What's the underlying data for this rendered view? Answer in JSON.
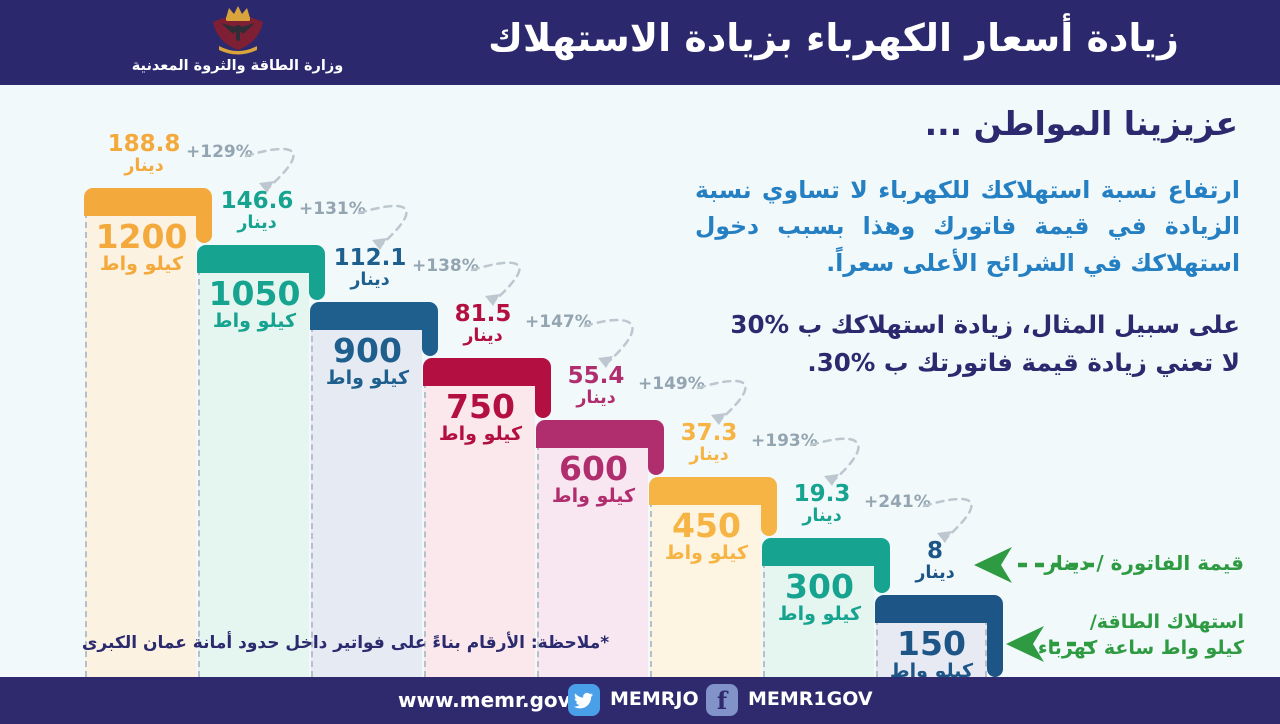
{
  "header": {
    "title": "زيادة أسعار الكهرباء بزيادة الاستهلاك",
    "ministry_name": "وزارة الطاقة والثروة المعدنية"
  },
  "intro": {
    "greeting": "عزيزينا المواطن ...",
    "paragraph1": "ارتفاع نسبة استهلاكك للكهرباء لا تساوي نسبة الزيادة في قيمة فاتورك وهذا بسبب دخول استهلاكك في الشرائح الأعلى سعراً.",
    "paragraph2": "على سبيل المثال، زيادة استهلاكك ب %30 لا تعني زيادة قيمة فاتورتك ب %30."
  },
  "legend": {
    "bill_label": "قيمة الفاتورة / دينار",
    "consumption_label_line1": "استهلاك الطاقة/",
    "consumption_label_line2": "كيلو واط ساعة كهرباء"
  },
  "note": "*ملاحظة: الأرقام بناءً على فواتير داخل حدود أمانة عمان الكبرى",
  "units": {
    "dinar": "دينار",
    "kilowatt": "كيلو واط"
  },
  "footer": {
    "website": "www.memr.gov.jo",
    "twitter_handle": "MEMRJO",
    "facebook_handle": "MEMR1GOV",
    "facebook_f": "f"
  },
  "colors": {
    "header_bg": "#2B286E",
    "footer_bg": "#2E2A6D",
    "background": "#F2F9FB",
    "arrow_green": "#2E9B43",
    "pct_grey": "#94A5B2",
    "arc_grey": "#BCC7CF"
  },
  "chart_data": {
    "type": "bar",
    "title": "زيادة أسعار الكهرباء بزيادة الاستهلاك",
    "x_unit": "كيلو واط",
    "y_unit": "دينار",
    "note": "الأرقام بناءً على فواتير داخل حدود أمانة عمان الكبرى",
    "categories_kwh": [
      1200,
      1050,
      900,
      750,
      600,
      450,
      300,
      150
    ],
    "values_price_jd": [
      188.8,
      146.6,
      112.1,
      81.5,
      55.4,
      37.3,
      19.3,
      8
    ],
    "increase_pct_labels": [
      "+129%",
      "+131%",
      "+138%",
      "+147%",
      "+149%",
      "+193%",
      "+241%",
      null
    ],
    "bars": [
      {
        "kwh": 1200,
        "price_jd": 188.8,
        "increase_pct": "+129%",
        "color": "#F4A93C",
        "tint": "#FCF2E1"
      },
      {
        "kwh": 1050,
        "price_jd": 146.6,
        "increase_pct": "+131%",
        "color": "#16A390",
        "tint": "#E5F5F0"
      },
      {
        "kwh": 900,
        "price_jd": 112.1,
        "increase_pct": "+138%",
        "color": "#1E5F8E",
        "tint": "#E6EAF3"
      },
      {
        "kwh": 750,
        "price_jd": 81.5,
        "increase_pct": "+147%",
        "color": "#B31041",
        "tint": "#FAE8ED"
      },
      {
        "kwh": 600,
        "price_jd": 55.4,
        "increase_pct": "+149%",
        "color": "#B12E6E",
        "tint": "#F8E7F0"
      },
      {
        "kwh": 450,
        "price_jd": 37.3,
        "increase_pct": "+193%",
        "color": "#F5B443",
        "tint": "#FDF4E1"
      },
      {
        "kwh": 300,
        "price_jd": 19.3,
        "increase_pct": "+241%",
        "color": "#16A390",
        "tint": "#E5F5F0"
      },
      {
        "kwh": 150,
        "price_jd": 8,
        "increase_pct": null,
        "color": "#1D5586",
        "tint": "#E7EAF3"
      }
    ]
  }
}
